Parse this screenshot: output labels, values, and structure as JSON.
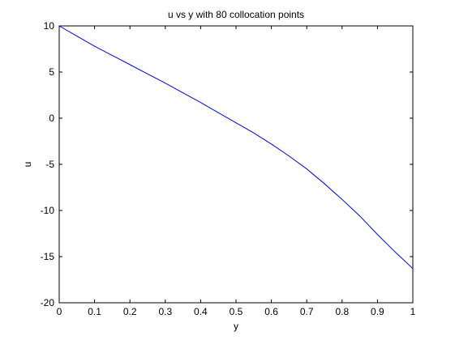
{
  "chart_data": {
    "type": "line",
    "title": "u vs y with 80 collocation points",
    "xlabel": "y",
    "ylabel": "u",
    "xlim": [
      0,
      1
    ],
    "ylim": [
      -20,
      10
    ],
    "xticks": [
      0,
      0.1,
      0.2,
      0.3,
      0.4,
      0.5,
      0.6,
      0.7,
      0.8,
      0.9,
      1
    ],
    "xtick_labels": [
      "0",
      "0.1",
      "0.2",
      "0.3",
      "0.4",
      "0.5",
      "0.6",
      "0.7",
      "0.8",
      "0.9",
      "1"
    ],
    "yticks": [
      -20,
      -15,
      -10,
      -5,
      0,
      5,
      10
    ],
    "ytick_labels": [
      "-20",
      "-15",
      "-10",
      "-5",
      "0",
      "5",
      "10"
    ],
    "grid": false,
    "series": [
      {
        "color": "#0000ff",
        "x": [
          0,
          0.05,
          0.1,
          0.15,
          0.2,
          0.25,
          0.3,
          0.35,
          0.4,
          0.45,
          0.5,
          0.55,
          0.6,
          0.65,
          0.7,
          0.75,
          0.8,
          0.85,
          0.9,
          0.95,
          1
        ],
        "y": [
          10,
          8.9,
          7.8,
          6.8,
          5.8,
          4.8,
          3.8,
          2.75,
          1.7,
          0.6,
          -0.5,
          -1.6,
          -2.8,
          -4.1,
          -5.5,
          -7.1,
          -8.8,
          -10.6,
          -12.6,
          -14.5,
          -16.3
        ]
      }
    ]
  }
}
